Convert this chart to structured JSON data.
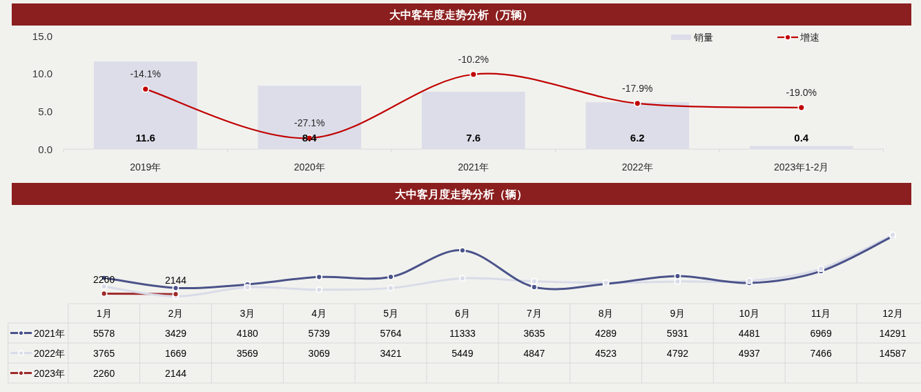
{
  "chart_data": [
    {
      "type": "bar",
      "title": "大中客年度走势分析（万辆）",
      "categories": [
        "2019年",
        "2020年",
        "2021年",
        "2022年",
        "2023年1-2月"
      ],
      "series": [
        {
          "name": "销量",
          "type": "bar",
          "color": "#dcdde8",
          "values": [
            11.6,
            8.4,
            7.6,
            6.2,
            0.4
          ],
          "data_labels": true
        },
        {
          "name": "增速",
          "type": "line",
          "axis": "y2",
          "color": "#c00000",
          "values": [
            -14.1,
            -27.1,
            -10.2,
            -17.9,
            -19.0
          ],
          "value_labels": [
            "-14.1%",
            "-27.1%",
            "-10.2%",
            "-17.9%",
            "-19.0%"
          ]
        }
      ],
      "ylim": [
        0,
        15
      ],
      "yticks": [
        {
          "value": 0,
          "label": "0.0"
        },
        {
          "value": 5,
          "label": "5.0"
        },
        {
          "value": 10,
          "label": "10.0"
        },
        {
          "value": 15,
          "label": "15.0"
        }
      ],
      "y2lim": [
        -30,
        0
      ],
      "legend": "top right",
      "marker": "circle"
    },
    {
      "type": "line",
      "title": "大中客月度走势分析（辆）",
      "categories": [
        "1月",
        "2月",
        "3月",
        "4月",
        "5月",
        "6月",
        "7月",
        "8月",
        "9月",
        "10月",
        "11月",
        "12月"
      ],
      "series": [
        {
          "name": "2021年",
          "color": "#4a5289",
          "values": [
            5578,
            3429,
            4180,
            5739,
            5764,
            11333,
            3635,
            4289,
            5931,
            4481,
            6969,
            14291
          ]
        },
        {
          "name": "2022年",
          "color": "#d9dbe8",
          "values": [
            3765,
            1669,
            3569,
            3069,
            3421,
            5449,
            4847,
            4523,
            4792,
            4937,
            7466,
            14587
          ]
        },
        {
          "name": "2023年",
          "color": "#9e2a2b",
          "values": [
            2260,
            2144,
            null,
            null,
            null,
            null,
            null,
            null,
            null,
            null,
            null,
            null
          ]
        }
      ],
      "annotations": [
        {
          "text": "2260",
          "x": "1月",
          "y": 2260
        },
        {
          "text": "2144",
          "x": "2月",
          "y": 2144
        }
      ],
      "tick_labels": "x",
      "data_labels": true,
      "legend": "bottom left",
      "marker": "circle"
    }
  ]
}
